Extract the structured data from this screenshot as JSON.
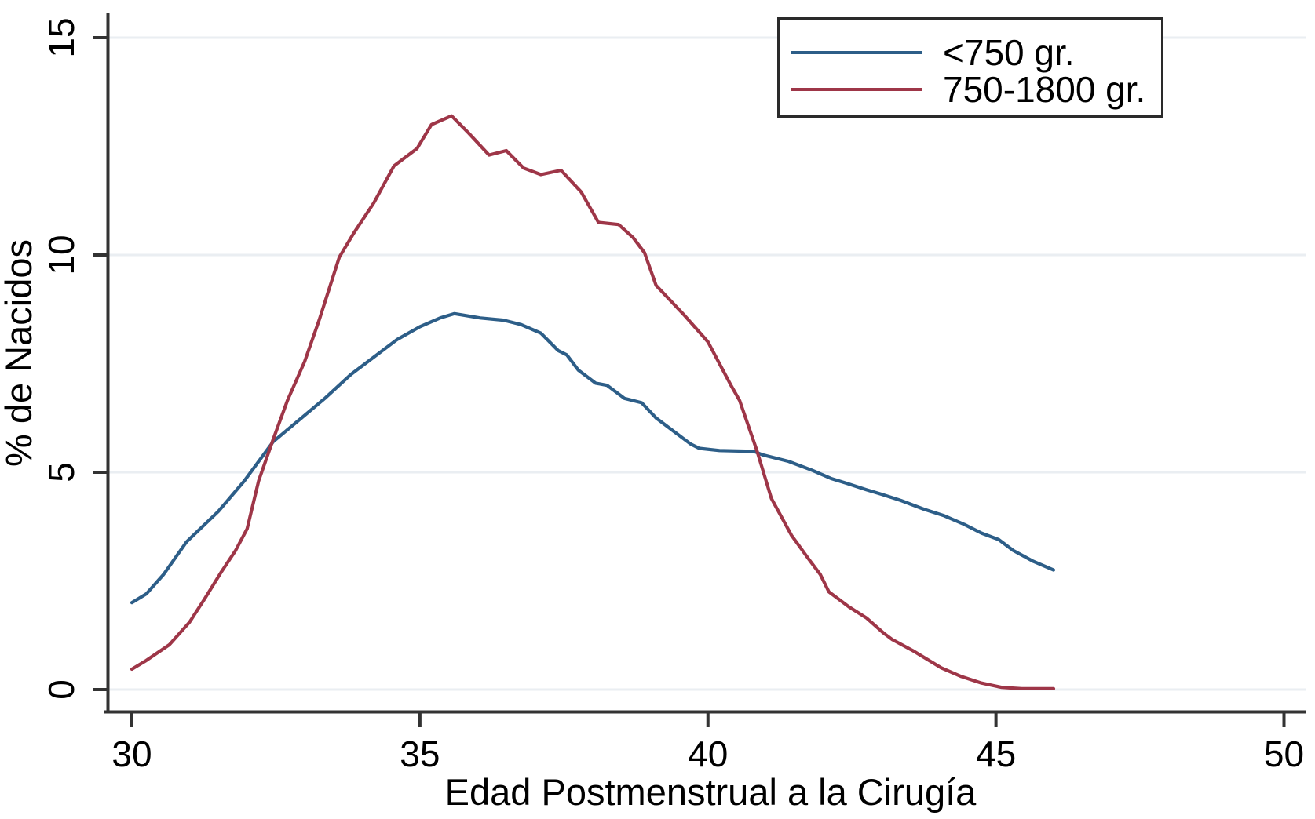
{
  "figure": {
    "background": "#ffffff",
    "colors": {
      "grid": "#eaeef2",
      "axis": "#333333",
      "text": "#000000",
      "legend_border": "#2a2a2a"
    }
  },
  "chart_data": {
    "type": "line",
    "title": "",
    "xlabel": "Edad Postmenstrual a la Cirugía",
    "ylabel": "% de Nacidos",
    "xlim": [
      30,
      50
    ],
    "ylim": [
      0,
      15
    ],
    "x_ticks": [
      30,
      35,
      40,
      45,
      50
    ],
    "y_ticks": [
      0,
      5,
      10,
      15
    ],
    "grid": "horizontal-only",
    "legend_position": "top-right",
    "series": [
      {
        "name": "<750 gr.",
        "color": "#2d5e88",
        "points": [
          [
            30.0,
            2.0
          ],
          [
            30.25,
            2.2
          ],
          [
            30.55,
            2.65
          ],
          [
            30.95,
            3.4
          ],
          [
            31.5,
            4.1
          ],
          [
            31.95,
            4.8
          ],
          [
            32.45,
            5.7
          ],
          [
            32.9,
            6.2
          ],
          [
            33.35,
            6.7
          ],
          [
            33.8,
            7.25
          ],
          [
            34.2,
            7.65
          ],
          [
            34.6,
            8.05
          ],
          [
            35.0,
            8.35
          ],
          [
            35.35,
            8.55
          ],
          [
            35.6,
            8.65
          ],
          [
            36.05,
            8.55
          ],
          [
            36.45,
            8.5
          ],
          [
            36.75,
            8.4
          ],
          [
            37.1,
            8.2
          ],
          [
            37.4,
            7.8
          ],
          [
            37.55,
            7.7
          ],
          [
            37.75,
            7.35
          ],
          [
            38.05,
            7.05
          ],
          [
            38.25,
            7.0
          ],
          [
            38.55,
            6.7
          ],
          [
            38.85,
            6.6
          ],
          [
            39.1,
            6.25
          ],
          [
            39.4,
            5.95
          ],
          [
            39.7,
            5.65
          ],
          [
            39.85,
            5.55
          ],
          [
            40.2,
            5.5
          ],
          [
            40.8,
            5.48
          ],
          [
            40.95,
            5.4
          ],
          [
            41.4,
            5.25
          ],
          [
            41.8,
            5.05
          ],
          [
            42.15,
            4.85
          ],
          [
            42.4,
            4.75
          ],
          [
            42.75,
            4.6
          ],
          [
            43.0,
            4.5
          ],
          [
            43.35,
            4.35
          ],
          [
            43.75,
            4.15
          ],
          [
            44.1,
            4.0
          ],
          [
            44.45,
            3.8
          ],
          [
            44.75,
            3.6
          ],
          [
            45.05,
            3.45
          ],
          [
            45.3,
            3.2
          ],
          [
            45.65,
            2.95
          ],
          [
            46.0,
            2.75
          ]
        ]
      },
      {
        "name": "750-1800 gr.",
        "color": "#9e3648",
        "points": [
          [
            30.0,
            0.47
          ],
          [
            30.25,
            0.67
          ],
          [
            30.65,
            1.03
          ],
          [
            31.0,
            1.55
          ],
          [
            31.25,
            2.06
          ],
          [
            31.55,
            2.7
          ],
          [
            31.8,
            3.2
          ],
          [
            32.0,
            3.7
          ],
          [
            32.2,
            4.8
          ],
          [
            32.45,
            5.75
          ],
          [
            32.7,
            6.65
          ],
          [
            33.0,
            7.55
          ],
          [
            33.25,
            8.5
          ],
          [
            33.6,
            9.95
          ],
          [
            33.85,
            10.5
          ],
          [
            34.2,
            11.2
          ],
          [
            34.55,
            12.05
          ],
          [
            34.65,
            12.15
          ],
          [
            34.95,
            12.45
          ],
          [
            35.2,
            13.0
          ],
          [
            35.55,
            13.2
          ],
          [
            35.85,
            12.8
          ],
          [
            36.2,
            12.3
          ],
          [
            36.5,
            12.4
          ],
          [
            36.8,
            12.0
          ],
          [
            37.1,
            11.85
          ],
          [
            37.45,
            11.95
          ],
          [
            37.8,
            11.45
          ],
          [
            38.1,
            10.75
          ],
          [
            38.45,
            10.7
          ],
          [
            38.7,
            10.4
          ],
          [
            38.9,
            10.05
          ],
          [
            39.1,
            9.3
          ],
          [
            39.35,
            8.95
          ],
          [
            39.6,
            8.6
          ],
          [
            39.8,
            8.3
          ],
          [
            40.0,
            8.0
          ],
          [
            40.2,
            7.5
          ],
          [
            40.4,
            7.0
          ],
          [
            40.55,
            6.65
          ],
          [
            40.85,
            5.5
          ],
          [
            41.1,
            4.4
          ],
          [
            41.45,
            3.55
          ],
          [
            41.75,
            3.0
          ],
          [
            41.95,
            2.65
          ],
          [
            42.1,
            2.25
          ],
          [
            42.45,
            1.9
          ],
          [
            42.75,
            1.65
          ],
          [
            43.05,
            1.3
          ],
          [
            43.2,
            1.15
          ],
          [
            43.55,
            0.9
          ],
          [
            43.8,
            0.7
          ],
          [
            44.05,
            0.5
          ],
          [
            44.4,
            0.3
          ],
          [
            44.75,
            0.15
          ],
          [
            45.1,
            0.05
          ],
          [
            45.45,
            0.02
          ],
          [
            46.0,
            0.02
          ]
        ]
      }
    ]
  }
}
